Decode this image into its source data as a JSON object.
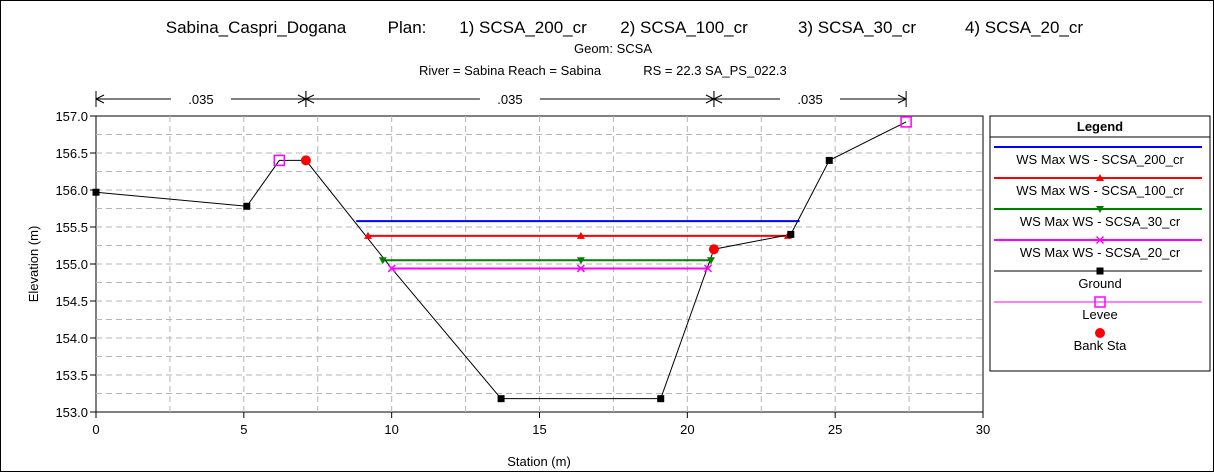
{
  "header": {
    "title": "Sabina_Caspri_Dogana",
    "plan_label": "Plan:",
    "plans": [
      "1) SCSA_200_cr",
      "2) SCSA_100_cr",
      "3) SCSA_30_cr",
      "4) SCSA_20_cr"
    ],
    "geom": "Geom: SCSA",
    "river_reach": "River = Sabina   Reach = Sabina",
    "rs": "RS = 22.3   SA_PS_022.3"
  },
  "chart_data": {
    "type": "line",
    "xlabel": "Station (m)",
    "ylabel": "Elevation (m)",
    "xlim": [
      0,
      30
    ],
    "ylim": [
      153.0,
      157.0
    ],
    "xticks": [
      "0",
      "5",
      "10",
      "15",
      "20",
      "25",
      "30"
    ],
    "yticks": [
      "153.0",
      "153.5",
      "154.0",
      "154.5",
      "155.0",
      "155.5",
      "156.0",
      "156.5",
      "157.0"
    ],
    "grid": true,
    "legend_title": "Legend",
    "legend_position": "right",
    "roughness": [
      {
        "label": ".035",
        "from": 0,
        "to": 7.1
      },
      {
        "label": ".035",
        "from": 7.1,
        "to": 20.9
      },
      {
        "label": ".035",
        "from": 20.9,
        "to": 27.4
      }
    ],
    "series": [
      {
        "name": "WS Max WS - SCSA_200_cr",
        "color": "#0000ff",
        "marker": "none",
        "x": [
          8.8,
          23.8
        ],
        "y": [
          155.58,
          155.58
        ],
        "marker_x": []
      },
      {
        "name": "WS Max WS - SCSA_100_cr",
        "color": "#ff0000",
        "marker": "triangle-up",
        "x": [
          9.2,
          23.4
        ],
        "y": [
          155.38,
          155.38
        ],
        "marker_x": [
          9.2,
          16.4,
          23.4
        ]
      },
      {
        "name": "WS Max WS - SCSA_30_cr",
        "color": "#008000",
        "marker": "triangle-down",
        "x": [
          9.7,
          20.8
        ],
        "y": [
          155.05,
          155.05
        ],
        "marker_x": [
          9.7,
          16.4,
          20.8
        ]
      },
      {
        "name": "WS Max WS - SCSA_20_cr",
        "color": "#ff00ff",
        "marker": "x",
        "x": [
          10.0,
          20.7
        ],
        "y": [
          154.94,
          154.94
        ],
        "marker_x": [
          10.0,
          16.4,
          20.7
        ]
      },
      {
        "name": "Ground",
        "color": "#000000",
        "marker": "square",
        "x": [
          0,
          5.1,
          6.2,
          7.1,
          10.0,
          13.7,
          19.1,
          20.9,
          23.5,
          24.8,
          27.4
        ],
        "y": [
          155.97,
          155.78,
          156.4,
          156.4,
          154.94,
          153.18,
          153.18,
          155.2,
          155.4,
          156.4,
          156.92
        ],
        "marker_x": [
          0,
          5.1,
          13.7,
          19.1,
          23.5,
          24.8
        ]
      },
      {
        "name": "Levee",
        "color": "#ff00ff",
        "marker": "square-open",
        "x": [
          6.2,
          27.4
        ],
        "y": [
          156.4,
          156.92
        ],
        "marker_x": [
          6.2,
          27.4
        ]
      },
      {
        "name": "Bank Sta",
        "color": "#ff0000",
        "marker": "circle",
        "x": [
          7.1,
          20.9
        ],
        "y": [
          156.4,
          155.2
        ],
        "marker_x": [
          7.1,
          20.9
        ]
      }
    ]
  }
}
